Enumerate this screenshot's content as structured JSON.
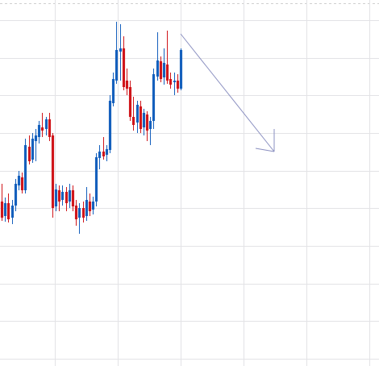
{
  "chart_data": {
    "type": "candlestick",
    "x": [
      0,
      1,
      2,
      3,
      4,
      5,
      6,
      7,
      8,
      9,
      10,
      11,
      12,
      13,
      14,
      15,
      16,
      17,
      18,
      19,
      20,
      21,
      22,
      23,
      24,
      25,
      26,
      27,
      28,
      29,
      30,
      31,
      32,
      33,
      34,
      35,
      36,
      37,
      38,
      39,
      40,
      41,
      42,
      43,
      44,
      45,
      46,
      47,
      48,
      49,
      50,
      51,
      52,
      53
    ],
    "open": [
      204,
      186,
      202,
      184,
      199,
      224,
      234,
      218,
      272,
      256,
      279,
      284,
      296,
      294,
      306,
      286,
      198,
      218,
      206,
      216,
      204,
      218,
      199,
      184,
      196,
      186,
      204,
      194,
      204,
      258,
      266,
      262,
      268,
      326,
      354,
      390,
      394,
      354,
      346,
      309,
      302,
      322,
      296,
      312,
      294,
      304,
      359,
      378,
      358,
      374,
      356,
      352,
      354,
      344
    ],
    "high": [
      226,
      209,
      214,
      206,
      232,
      242,
      240,
      282,
      286,
      289,
      294,
      304,
      314,
      309,
      314,
      289,
      226,
      224,
      224,
      222,
      226,
      224,
      206,
      202,
      204,
      222,
      214,
      210,
      264,
      274,
      284,
      274,
      336,
      364,
      427,
      424,
      409,
      369,
      354,
      334,
      329,
      329,
      319,
      316,
      309,
      369,
      414,
      384,
      394,
      416,
      364,
      364,
      362,
      394
    ],
    "low": [
      180,
      179,
      178,
      176,
      192,
      218,
      214,
      214,
      250,
      252,
      254,
      276,
      284,
      286,
      279,
      184,
      192,
      192,
      199,
      192,
      196,
      192,
      174,
      164,
      178,
      180,
      186,
      188,
      198,
      244,
      256,
      254,
      264,
      322,
      350,
      354,
      342,
      336,
      304,
      292,
      289,
      289,
      286,
      279,
      274,
      294,
      354,
      352,
      349,
      350,
      344,
      336,
      339,
      342
    ],
    "close": [
      184,
      202,
      182,
      199,
      226,
      236,
      218,
      274,
      254,
      282,
      286,
      299,
      292,
      306,
      284,
      196,
      219,
      204,
      216,
      202,
      218,
      198,
      182,
      196,
      184,
      206,
      192,
      204,
      259,
      266,
      260,
      269,
      329,
      356,
      392,
      394,
      346,
      344,
      309,
      299,
      324,
      294,
      314,
      292,
      304,
      362,
      379,
      356,
      376,
      354,
      349,
      354,
      344,
      392
    ],
    "up_color": "#1560bd",
    "down_color": "#d0161b",
    "xlim": [
      -0.5,
      111.8
    ],
    "xticks": [
      15.7,
      34.4,
      53,
      71.7,
      90.3,
      108.9
    ],
    "ylim": [
      0,
      454
    ],
    "yticks": [
      9,
      56,
      102,
      149,
      196,
      242,
      289,
      336,
      382,
      429
    ],
    "grid": true
  }
}
